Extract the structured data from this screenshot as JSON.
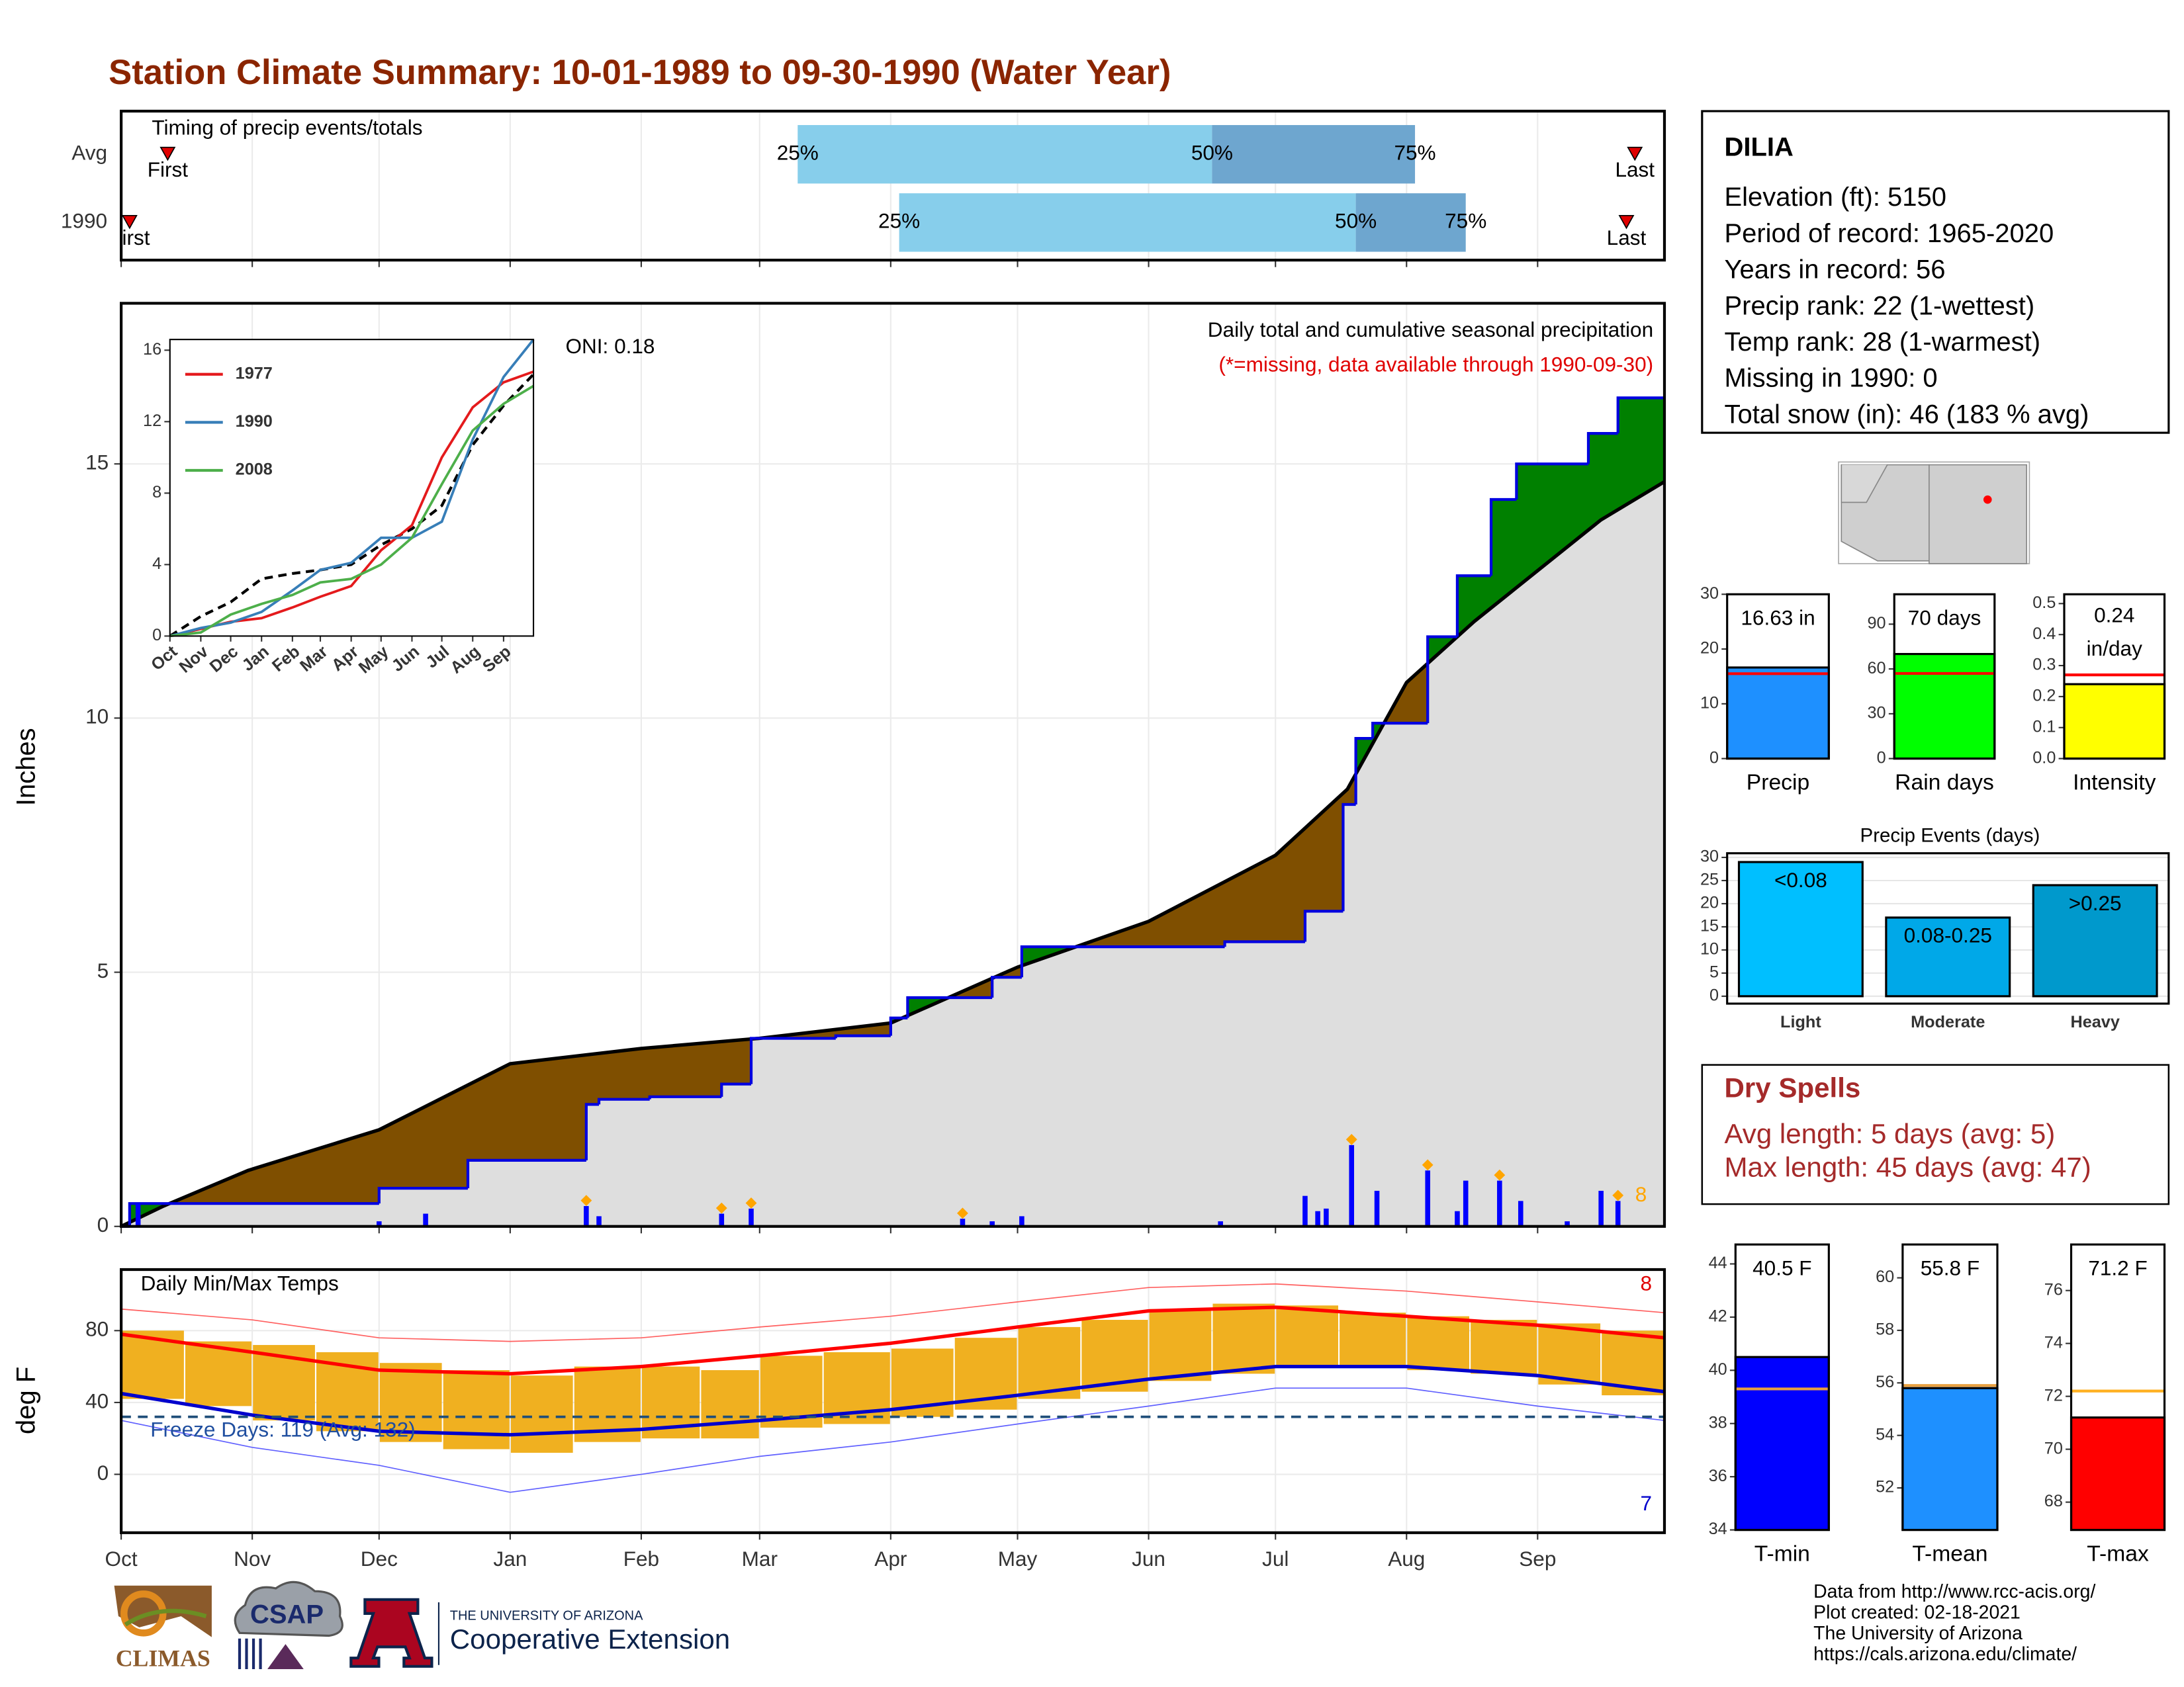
{
  "title": "Station Climate Summary: 10-01-1989 to 09-30-1990 (Water Year)",
  "station": {
    "name": "DILIA",
    "lines": [
      "Elevation (ft): 5150",
      "Period of record: 1965-2020",
      "Years in record: 56",
      "Precip rank: 22 (1-wettest)",
      "Temp rank: 28 (1-warmest)",
      "Missing in 1990: 0",
      "Total snow (in): 46 (183 % avg)"
    ]
  },
  "dry_spells": {
    "title": "Dry Spells",
    "lines": [
      "Avg length: 5 days (avg: 5)",
      "Max length: 45 days (avg: 47)"
    ]
  },
  "footer": [
    "Data from http://www.rcc-acis.org/",
    "Plot created: 02-18-2021",
    "The University of Arizona",
    "https://cals.arizona.edu/climate/"
  ],
  "logos": {
    "climas": "CLIMAS",
    "csap": "CSAP",
    "ua_small": "THE UNIVERSITY OF ARIZONA",
    "ua_big": "Cooperative Extension"
  },
  "chart_data": [
    {
      "type": "timing",
      "title": "Timing of precip events/totals",
      "xlim": [
        0,
        365
      ],
      "xticks": [
        0,
        31,
        61,
        92,
        123,
        151,
        182,
        212,
        243,
        273,
        304,
        335
      ],
      "labels": {
        "first": "First",
        "last": "Last",
        "q25": "25%",
        "q50": "50%",
        "q75": "75%"
      },
      "colors": {
        "low": "#87ceeb",
        "high": "#6ea6cf",
        "marker": "#e00000"
      },
      "rows": [
        {
          "label": "Avg",
          "first": 11,
          "q25": 160,
          "q50": 258,
          "q75": 306,
          "last": 358
        },
        {
          "label": "1990",
          "first": 2,
          "q25": 184,
          "q50": 292,
          "q75": 318,
          "last": 356
        }
      ]
    },
    {
      "type": "cumulative",
      "title": "Daily total and cumulative seasonal precipitation",
      "note": "(*=missing, data available through 1990-09-30)",
      "oni": "ONI: 0.18",
      "count": 8,
      "ylabel": "Inches",
      "xlim": [
        0,
        365
      ],
      "ylim": [
        0,
        18.16
      ],
      "yticks": [
        0,
        5,
        10,
        15
      ],
      "xticks": [
        0,
        31,
        61,
        92,
        123,
        151,
        182,
        212,
        243,
        273,
        304,
        335
      ],
      "grid": true,
      "colors": {
        "above": "#008000",
        "below": "#7f4f00",
        "base": "#dedede",
        "obs": "#0000e0",
        "avg": "#000000",
        "daily": "#0000ff",
        "flag": "#ffa500"
      },
      "avg": {
        "x": [
          0,
          10,
          30,
          61,
          92,
          123,
          151,
          182,
          212,
          243,
          273,
          290,
          304,
          320,
          335,
          350,
          365
        ],
        "values": [
          0,
          0.4,
          1.1,
          1.9,
          3.2,
          3.5,
          3.7,
          4.0,
          5.1,
          6.0,
          7.3,
          8.6,
          10.7,
          11.9,
          12.9,
          13.9,
          14.65
        ]
      },
      "obs": {
        "x": [
          0,
          2,
          61,
          82,
          110,
          113,
          125,
          142,
          149,
          169,
          182,
          186,
          206,
          213,
          261,
          280,
          289,
          292,
          296,
          309,
          316,
          324,
          330,
          347,
          354
        ],
        "values": [
          0,
          0.45,
          0.75,
          1.3,
          2.4,
          2.5,
          2.55,
          2.8,
          3.7,
          3.75,
          4.1,
          4.5,
          4.9,
          5.5,
          5.6,
          6.2,
          8.3,
          9.6,
          9.9,
          11.6,
          12.8,
          14.3,
          15.0,
          15.6,
          16.3
        ]
      },
      "daily": {
        "x": [
          4,
          61,
          72,
          110,
          113,
          142,
          149,
          199,
          206,
          213,
          260,
          280,
          283,
          285,
          291,
          297,
          309,
          316,
          318,
          326,
          331,
          342,
          350,
          354
        ],
        "values": [
          0.45,
          0.1,
          0.25,
          0.4,
          0.2,
          0.25,
          0.35,
          0.15,
          0.1,
          0.2,
          0.1,
          0.6,
          0.3,
          0.35,
          1.6,
          0.7,
          1.1,
          0.3,
          0.9,
          0.9,
          0.5,
          0.1,
          0.7,
          0.5
        ],
        "flagged": [
          false,
          false,
          false,
          true,
          false,
          true,
          true,
          true,
          false,
          false,
          false,
          false,
          false,
          false,
          true,
          false,
          true,
          false,
          false,
          true,
          false,
          false,
          false,
          true
        ]
      }
    },
    {
      "type": "inset",
      "xlim": [
        0,
        365
      ],
      "ylim": [
        0,
        16.6
      ],
      "yticks": [
        0,
        4,
        8,
        12,
        16
      ],
      "x": [
        0,
        31,
        61,
        92,
        123,
        151,
        182,
        212,
        243,
        273,
        304,
        335,
        365
      ],
      "xtick_labels": [
        "Oct",
        "Nov",
        "Dec",
        "Jan",
        "Feb",
        "Mar",
        "Apr",
        "May",
        "Jun",
        "Jul",
        "Aug",
        "Sep"
      ],
      "series": [
        {
          "name": "1977",
          "color": "#e41a1c",
          "values": [
            0,
            0.4,
            0.8,
            1.0,
            1.6,
            2.2,
            2.8,
            4.8,
            6.2,
            10.0,
            12.8,
            14.2,
            14.8
          ]
        },
        {
          "name": "1990",
          "color": "#377eb8",
          "values": [
            0,
            0.45,
            0.75,
            1.35,
            2.55,
            3.7,
            4.1,
            5.5,
            5.5,
            6.4,
            11.0,
            14.5,
            16.6
          ]
        },
        {
          "name": "2008",
          "color": "#4daf4a",
          "values": [
            0,
            0.2,
            1.2,
            1.8,
            2.3,
            3.0,
            3.2,
            4.0,
            5.5,
            8.5,
            11.5,
            13.0,
            14.0
          ]
        }
      ],
      "avg_values": [
        0,
        1.1,
        1.9,
        3.2,
        3.5,
        3.7,
        4.0,
        5.1,
        6.0,
        7.3,
        10.7,
        12.9,
        14.65
      ]
    },
    {
      "type": "temps",
      "title": "Daily Min/Max Temps",
      "freeze_label": "Freeze Days: 119 (Avg: 132)",
      "max_count": 8,
      "min_count": 7,
      "ylabel": "deg F",
      "xlim": [
        0,
        365
      ],
      "ylim": [
        -32.5,
        114
      ],
      "yticks": [
        0,
        40,
        80
      ],
      "freeze_threshold": 32,
      "grid": true,
      "xticks": [
        {
          "value": 0,
          "label": "Oct"
        },
        {
          "value": 31,
          "label": "Nov"
        },
        {
          "value": 61,
          "label": "Dec"
        },
        {
          "value": 92,
          "label": "Jan"
        },
        {
          "value": 123,
          "label": "Feb"
        },
        {
          "value": 151,
          "label": "Mar"
        },
        {
          "value": 182,
          "label": "Apr"
        },
        {
          "value": 212,
          "label": "May"
        },
        {
          "value": 243,
          "label": "Jun"
        },
        {
          "value": 273,
          "label": "Jul"
        },
        {
          "value": 304,
          "label": "Aug"
        },
        {
          "value": 335,
          "label": "Sep"
        }
      ],
      "colors": {
        "range": "#f0b020",
        "avg_max": "#ff0000",
        "avg_min": "#0000cc",
        "rec_max": "#ff6060",
        "rec_min": "#6060ff",
        "freeze": "#1f4e79"
      },
      "x": [
        0,
        15,
        31,
        46,
        61,
        76,
        92,
        107,
        123,
        137,
        151,
        166,
        182,
        197,
        212,
        227,
        243,
        258,
        273,
        288,
        304,
        319,
        335,
        350
      ],
      "obs_max": [
        80,
        74,
        72,
        68,
        62,
        58,
        55,
        60,
        60,
        58,
        66,
        68,
        70,
        76,
        82,
        86,
        92,
        95,
        94,
        90,
        88,
        86,
        84,
        80
      ],
      "obs_min": [
        42,
        38,
        30,
        24,
        18,
        14,
        12,
        18,
        20,
        20,
        26,
        28,
        32,
        36,
        42,
        46,
        52,
        56,
        60,
        60,
        58,
        56,
        50,
        44
      ],
      "x_avg": [
        0,
        31,
        61,
        92,
        123,
        151,
        182,
        212,
        243,
        273,
        304,
        335,
        365
      ],
      "avg_max": [
        78,
        68,
        58,
        56,
        60,
        66,
        73,
        82,
        91,
        93,
        88,
        83,
        76
      ],
      "avg_min": [
        45,
        33,
        24,
        22,
        25,
        30,
        36,
        44,
        53,
        60,
        60,
        55,
        46
      ],
      "rec_max": [
        92,
        86,
        76,
        74,
        76,
        82,
        88,
        96,
        104,
        106,
        102,
        96,
        90
      ],
      "rec_min": [
        30,
        15,
        5,
        -10,
        0,
        10,
        18,
        28,
        38,
        48,
        48,
        38,
        30
      ]
    },
    {
      "type": "gauge",
      "category": "Precip",
      "value": 16.63,
      "value_label": "16.63 in",
      "avg": 15.5,
      "color": "#1e90ff",
      "avg_color": "#ff0000",
      "ylim": [
        0,
        30
      ],
      "yticks": [
        0,
        10,
        20,
        30
      ]
    },
    {
      "type": "gauge",
      "category": "Rain days",
      "value": 70,
      "value_label": "70 days",
      "avg": 57,
      "color": "#00ff00",
      "avg_color": "#ff0000",
      "ylim": [
        0,
        110
      ],
      "yticks": [
        0,
        30,
        60,
        90
      ]
    },
    {
      "type": "gauge",
      "category": "Intensity",
      "value": 0.24,
      "value_label": "0.24",
      "value_unit": "in/day",
      "avg": 0.27,
      "color": "#ffff00",
      "avg_color": "#ff0000",
      "ylim": [
        0,
        0.53
      ],
      "yticks": [
        {
          "value": 0,
          "label": "0.0"
        },
        {
          "value": 0.1,
          "label": "0.1"
        },
        {
          "value": 0.2,
          "label": "0.2"
        },
        {
          "value": 0.3,
          "label": "0.3"
        },
        {
          "value": 0.4,
          "label": "0.4"
        },
        {
          "value": 0.5,
          "label": "0.5"
        }
      ]
    },
    {
      "type": "events",
      "title": "Precip Events (days)",
      "categories": [
        "Light",
        "Moderate",
        "Heavy"
      ],
      "bar_labels": [
        "<0.08",
        "0.08-0.25",
        ">0.25"
      ],
      "values": [
        29,
        17,
        24
      ],
      "colors": [
        "#00bfff",
        "#00a8e8",
        "#0099cc"
      ],
      "ylim": [
        -1.6,
        30.9
      ],
      "yticks": [
        0,
        5,
        10,
        15,
        20,
        25,
        30
      ],
      "grid": true
    },
    {
      "type": "gauge",
      "category": "T-min",
      "value": 40.5,
      "value_label": "40.5 F",
      "avg": 39.3,
      "color": "#0000ff",
      "avg_color": "#e8a040",
      "ylim": [
        34,
        44.73
      ],
      "yticks": [
        34,
        36,
        38,
        40,
        42,
        44
      ]
    },
    {
      "type": "gauge",
      "category": "T-mean",
      "value": 55.8,
      "value_label": "55.8 F",
      "avg": 55.9,
      "color": "#1e90ff",
      "avg_color": "#e8a040",
      "ylim": [
        50.4,
        61.27
      ],
      "yticks": [
        52,
        54,
        56,
        58,
        60
      ]
    },
    {
      "type": "gauge",
      "category": "T-max",
      "value": 71.2,
      "value_label": "71.2 F",
      "avg": 72.2,
      "color": "#ff0000",
      "avg_color": "#ffb020",
      "ylim": [
        66.95,
        77.74
      ],
      "yticks": [
        68,
        70,
        72,
        74,
        76
      ]
    }
  ]
}
